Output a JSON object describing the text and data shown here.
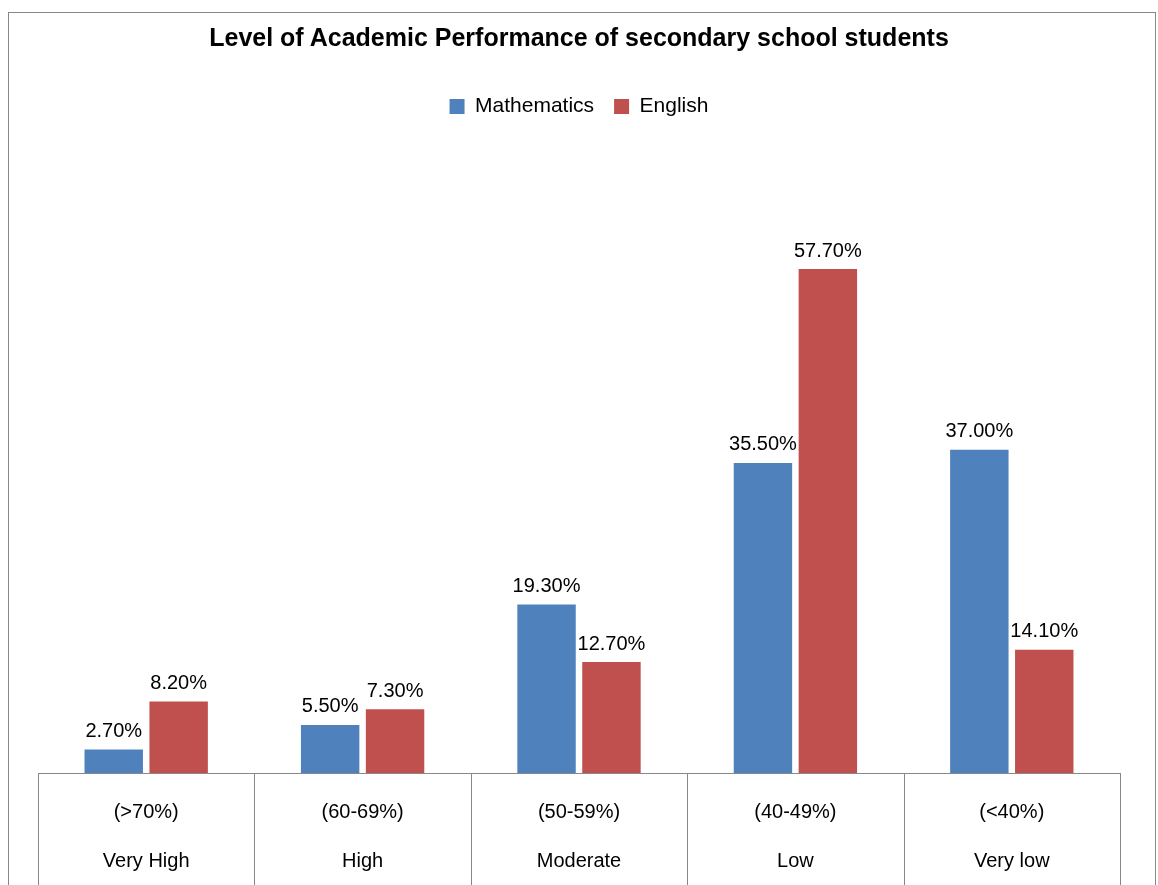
{
  "chart_data": {
    "type": "bar",
    "title": "Level of Academic Performance of secondary school students",
    "categories": [
      "(>70%)\nVery High",
      "(60-69%)\nHigh",
      "(50-59%)\nModerate",
      "(40-49%)\nLow",
      "(<40%)\nVery low"
    ],
    "series": [
      {
        "name": "Mathematics",
        "color": "#4f81bd",
        "values": [
          2.7,
          5.5,
          19.3,
          35.5,
          37.0
        ],
        "value_labels": [
          "2.70%",
          "5.50%",
          "19.30%",
          "35.50%",
          "37.00%"
        ]
      },
      {
        "name": "English",
        "color": "#c0504d",
        "values": [
          8.2,
          7.3,
          12.7,
          57.7,
          14.1
        ],
        "value_labels": [
          "8.20%",
          "7.30%",
          "12.70%",
          "57.70%",
          "14.10%"
        ]
      }
    ],
    "tick_labels": "x",
    "legend": "top"
  }
}
